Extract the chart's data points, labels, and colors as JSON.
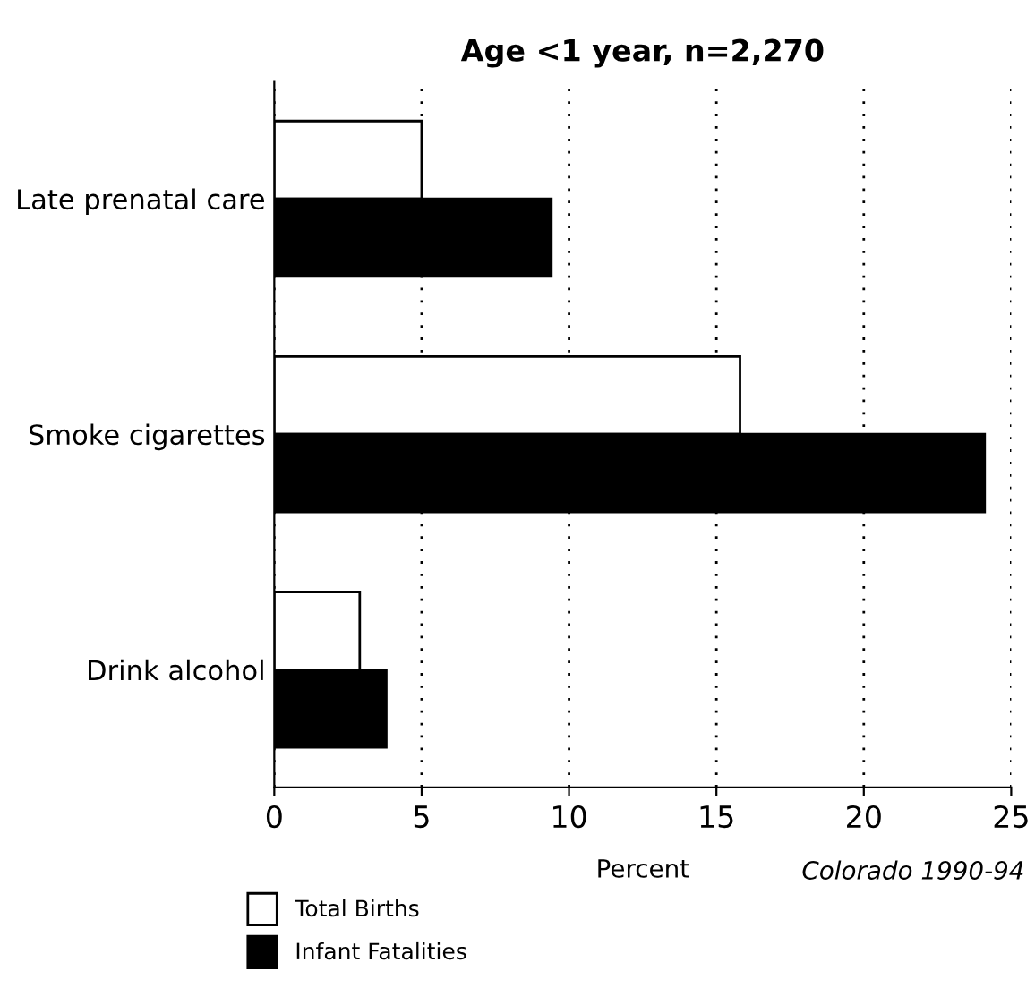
{
  "chart_data": {
    "type": "bar",
    "orientation": "horizontal",
    "title": "Age <1 year, n=2,270",
    "xlabel": "Percent",
    "categories": [
      "Late prenatal care",
      "Smoke cigarettes",
      "Drink alcohol"
    ],
    "series": [
      {
        "name": "Total Births",
        "color": "#ffffff",
        "values": [
          5.0,
          15.8,
          2.9
        ]
      },
      {
        "name": "Infant Fatalities",
        "color": "#000000",
        "values": [
          9.4,
          24.1,
          3.8
        ]
      }
    ],
    "xlim": [
      0,
      25
    ],
    "xticks": [
      0,
      5,
      10,
      15,
      20,
      25
    ],
    "grid": "x",
    "legend": "bottom left",
    "annotations": [
      "Colorado 1990-94"
    ]
  }
}
